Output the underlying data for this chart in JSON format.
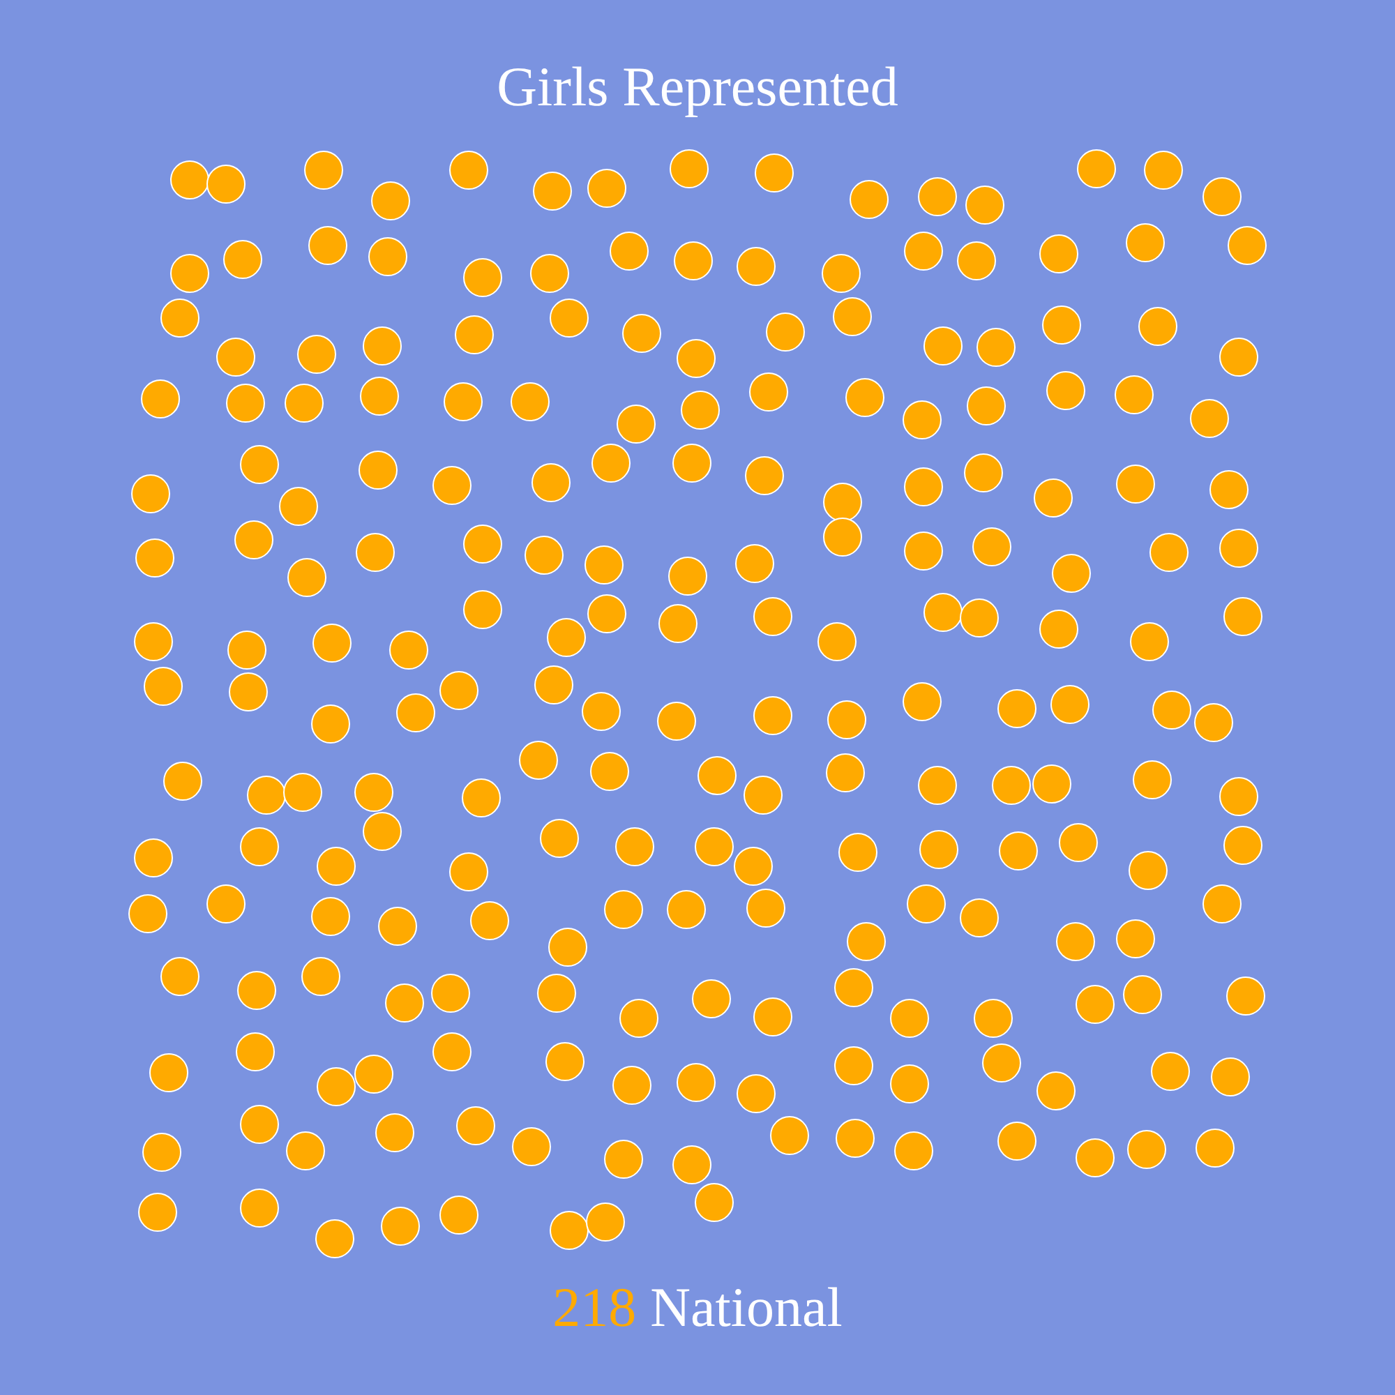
{
  "chart_data": {
    "type": "other",
    "title": "Girls Represented",
    "categories": [
      "National"
    ],
    "values": [
      218
    ],
    "color": "#ffaa00",
    "data_labels": true
  }
}
